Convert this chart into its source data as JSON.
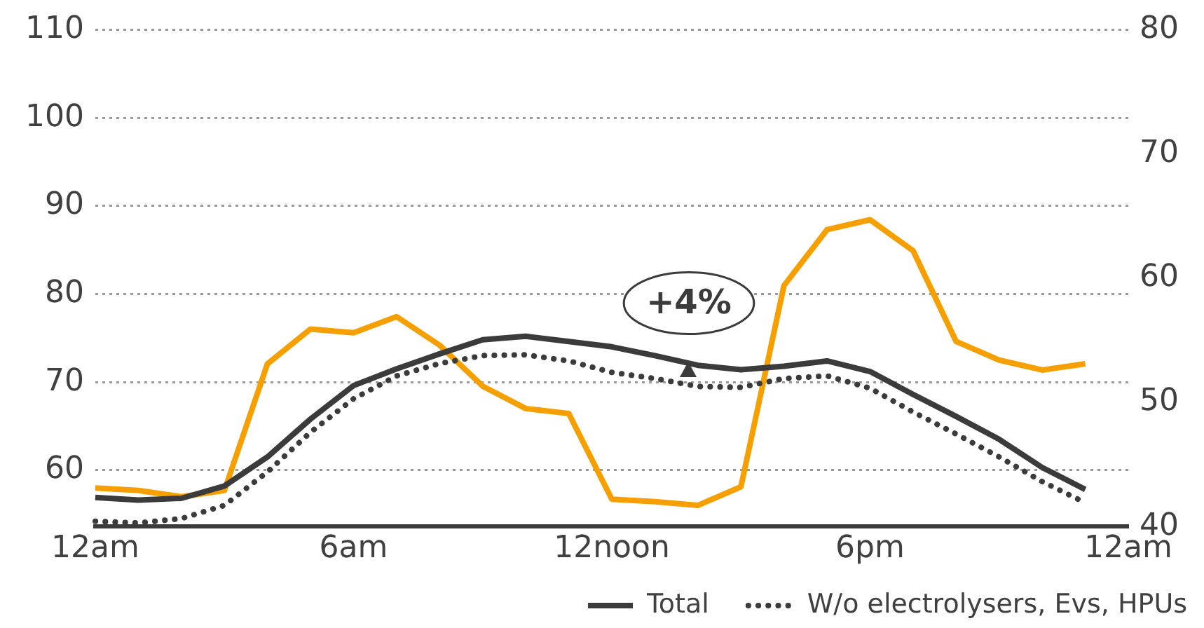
{
  "chart_data": {
    "type": "line",
    "categories": [
      "12am",
      null,
      null,
      null,
      null,
      null,
      "6am",
      null,
      null,
      null,
      null,
      null,
      "12noon",
      null,
      null,
      null,
      null,
      null,
      "6pm",
      null,
      null,
      null,
      null,
      null,
      "12am"
    ],
    "series": [
      {
        "name": "Total",
        "color": "#3b3b3b",
        "line_style": "solid",
        "values": [
          56.9,
          56.6,
          56.8,
          58.2,
          61.5,
          65.8,
          69.6,
          71.5,
          73.2,
          74.8,
          75.2,
          74.6,
          74.0,
          73.0,
          71.9,
          71.4,
          71.8,
          72.4,
          71.2,
          68.6,
          66.1,
          63.5,
          60.3,
          57.8,
          null
        ]
      },
      {
        "name": "W/o electrolysers, Evs, HPUs",
        "color": "#3b3b3b",
        "line_style": "dotted",
        "values": [
          54.2,
          54.0,
          54.5,
          56.0,
          59.8,
          64.3,
          68.1,
          70.7,
          72.1,
          73.0,
          73.1,
          72.4,
          71.1,
          70.4,
          69.5,
          69.4,
          70.4,
          70.7,
          69.3,
          66.6,
          64.1,
          61.5,
          58.7,
          56.3,
          null
        ]
      },
      {
        "color": "#f5a000",
        "axis": "y2",
        "line_style": "solid",
        "values": [
          43.1,
          42.9,
          42.4,
          42.9,
          53.1,
          55.9,
          55.6,
          56.9,
          54.6,
          51.3,
          49.5,
          49.1,
          42.2,
          42.0,
          41.7,
          43.2,
          59.4,
          63.9,
          64.7,
          62.2,
          54.9,
          53.4,
          52.6,
          53.1,
          null
        ]
      }
    ],
    "ylim": [
      53.6,
      110
    ],
    "yticks": [
      60,
      70,
      80,
      90,
      100,
      110
    ],
    "y2lim": [
      40,
      80
    ],
    "y2ticks": [
      40,
      50,
      60,
      70,
      80
    ],
    "grid": "y",
    "legend": "bottom right",
    "marker": "none",
    "annotations": [
      {
        "text": "+4%",
        "y": 71
      }
    ]
  }
}
